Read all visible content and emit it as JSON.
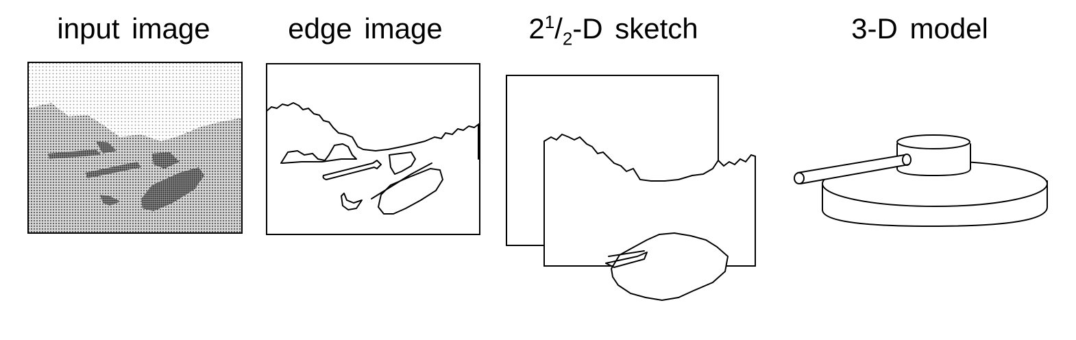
{
  "panels": [
    {
      "id": "input",
      "label": "input image"
    },
    {
      "id": "edge",
      "label": "edge image"
    },
    {
      "id": "sketch",
      "label_whole": "2",
      "label_num": "1",
      "label_den": "2",
      "label_rest": "-D  sketch"
    },
    {
      "id": "model",
      "label": "3-D model"
    }
  ],
  "colors": {
    "ink": "#000000",
    "background": "#ffffff",
    "dots_light": "#9a9a9a",
    "dots_mid": "#5a5a5a",
    "dots_dark": "#2a2a2a"
  }
}
